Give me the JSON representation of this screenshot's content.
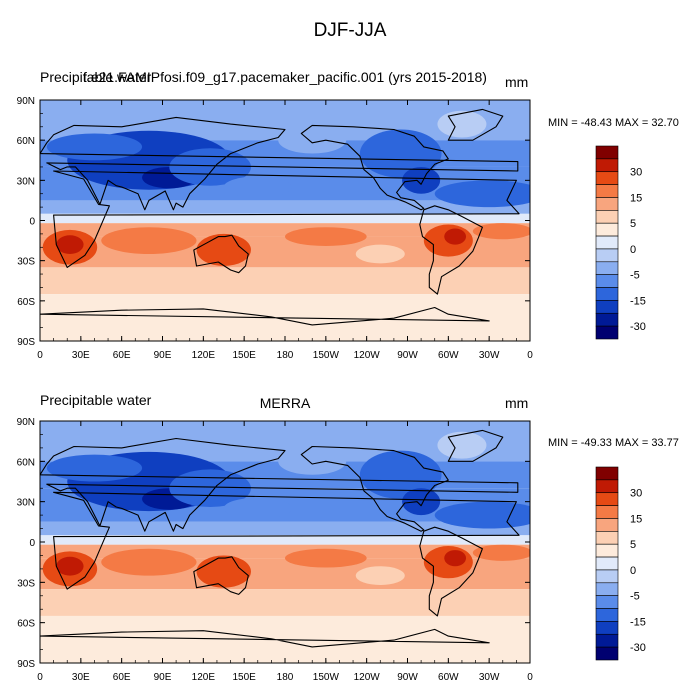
{
  "title": "DJF-JJA",
  "panels": [
    {
      "left_title": "Precipitable water",
      "center_title": "f.e21.FAMIPfosi.f09_g17.pacemaker_pacific.001 (yrs 2015-2018)",
      "units": "mm",
      "minmax": "MIN = -48.43 MAX =  32.70"
    },
    {
      "left_title": "Precipitable water",
      "center_title": "MERRA",
      "units": "mm",
      "minmax": "MIN = -49.33 MAX =  33.77"
    }
  ],
  "lat_ticks": [
    "90N",
    "60N",
    "30N",
    "0",
    "30S",
    "60S",
    "90S"
  ],
  "lon_ticks": [
    "0",
    "30E",
    "60E",
    "90E",
    "120E",
    "150E",
    "180",
    "150W",
    "120W",
    "90W",
    "60W",
    "30W",
    "0"
  ],
  "colorbar": {
    "labels": [
      "30",
      "15",
      "5",
      "0",
      "-5",
      "-15",
      "-30"
    ],
    "colors": [
      "#800000",
      "#c01a04",
      "#e64a14",
      "#f47a45",
      "#f8a57e",
      "#fcd0b4",
      "#fdebdc",
      "#e1eafa",
      "#b8cdf4",
      "#8aaef0",
      "#5a8cea",
      "#2d66dc",
      "#0f3fc0",
      "#001a96",
      "#000070"
    ]
  },
  "chart_data": {
    "type": "heatmap",
    "title": "DJF-JJA",
    "variable": "Precipitable water",
    "units": "mm",
    "x_ticks": [
      "0",
      "30E",
      "60E",
      "90E",
      "120E",
      "150E",
      "180",
      "150W",
      "120W",
      "90W",
      "60W",
      "30W",
      "0"
    ],
    "y_ticks": [
      "90N",
      "60N",
      "30N",
      "0",
      "30S",
      "60S",
      "90S"
    ],
    "contour_levels": [
      -35,
      -30,
      -25,
      -20,
      -15,
      -10,
      -5,
      0,
      5,
      10,
      15,
      20,
      25,
      30
    ],
    "panels": [
      {
        "dataset": "f.e21.FAMIPfosi.f09_g17.pacemaker_pacific.001 (yrs 2015-2018)",
        "min": -48.43,
        "max": 32.7
      },
      {
        "dataset": "MERRA",
        "min": -49.33,
        "max": 33.77
      }
    ]
  }
}
